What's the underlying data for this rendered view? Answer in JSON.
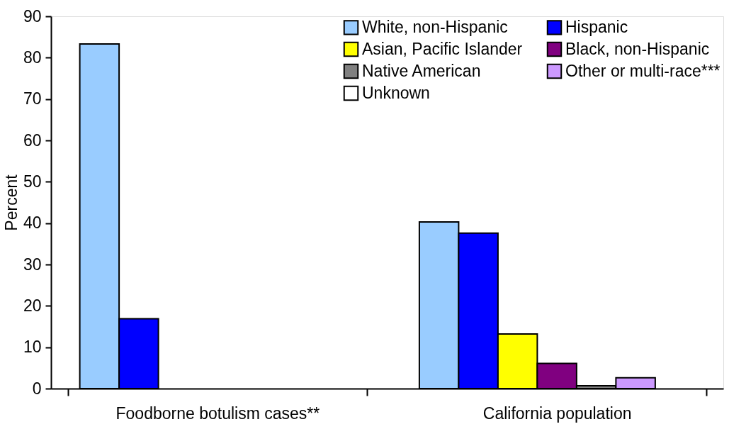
{
  "chart_data": {
    "type": "bar",
    "ylabel": "Percent",
    "categories": [
      "Foodborne botulism cases**",
      "California population"
    ],
    "series": [
      {
        "name": "White, non-Hispanic",
        "color": "#99ccff",
        "values": [
          83.3,
          40.3
        ]
      },
      {
        "name": "Hispanic",
        "color": "#0000ff",
        "values": [
          16.9,
          37.6
        ]
      },
      {
        "name": "Asian, Pacific Islander",
        "color": "#ffff00",
        "values": [
          null,
          13.2
        ]
      },
      {
        "name": "Black, non-Hispanic",
        "color": "#800080",
        "values": [
          null,
          6.1
        ]
      },
      {
        "name": "Native American",
        "color": "#808080",
        "values": [
          null,
          0.7
        ]
      },
      {
        "name": "Other or multi-race***",
        "color": "#cc99ff",
        "values": [
          null,
          2.6
        ]
      },
      {
        "name": "Unknown",
        "color": "#ffffff",
        "values": [
          null,
          null
        ]
      }
    ],
    "ylim": [
      0,
      90
    ],
    "yticks": [
      0,
      10,
      20,
      30,
      40,
      50,
      60,
      70,
      80,
      90
    ],
    "grid": false,
    "legend": "top right"
  }
}
